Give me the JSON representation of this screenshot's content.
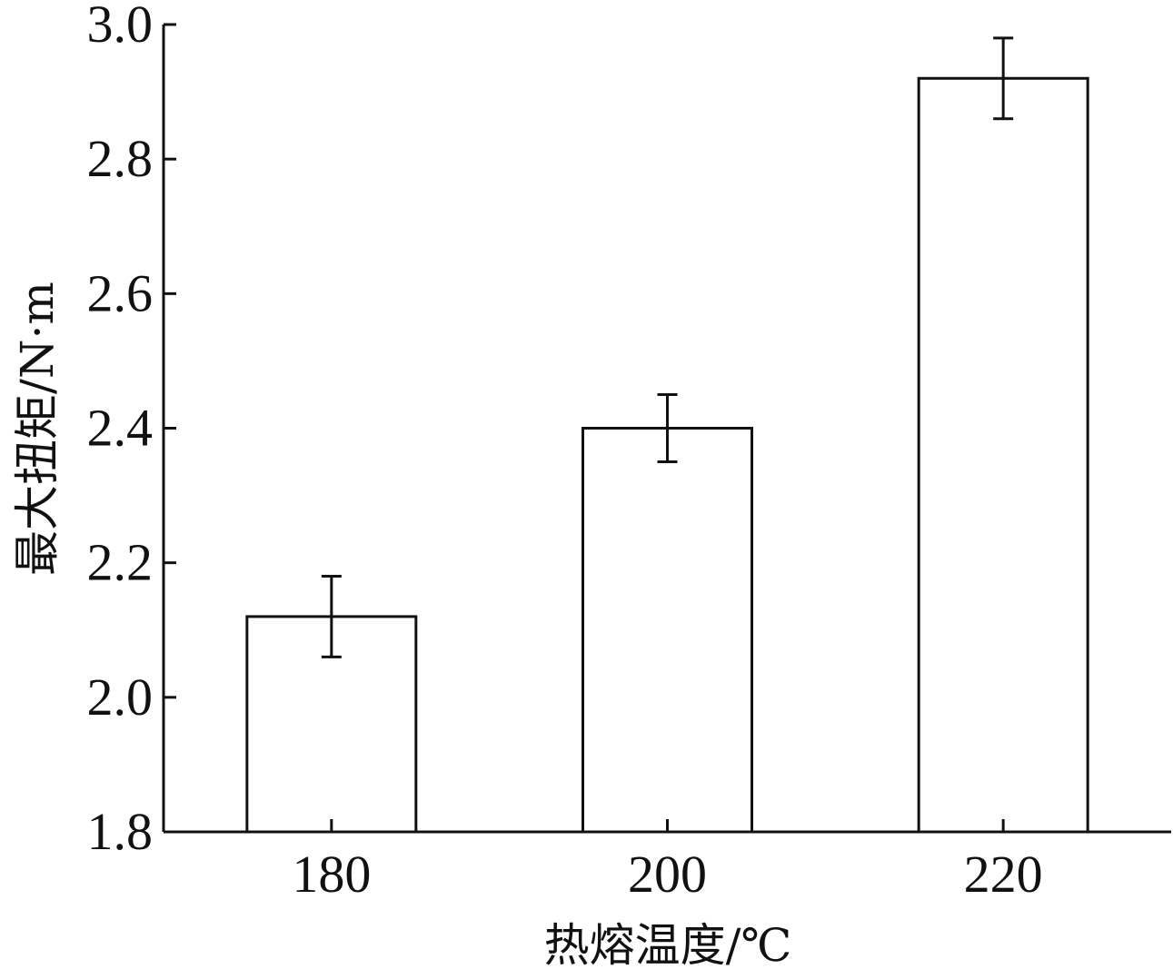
{
  "chart_data": {
    "type": "bar",
    "title": "",
    "xlabel": "热熔温度/℃",
    "ylabel": "最大扭矩/N·m",
    "categories": [
      "180",
      "200",
      "220"
    ],
    "values": [
      2.12,
      2.4,
      2.92
    ],
    "error": [
      0.06,
      0.05,
      0.06
    ],
    "ylim": [
      1.8,
      3.0
    ],
    "yticks": [
      "1.8",
      "2.0",
      "2.2",
      "2.4",
      "2.6",
      "2.8",
      "3.0"
    ],
    "grid": false,
    "legend": "none",
    "colors": {
      "bar_fill": "#ffffff",
      "bar_stroke": "#111111",
      "axis": "#111111",
      "error_bar": "#111111"
    }
  }
}
